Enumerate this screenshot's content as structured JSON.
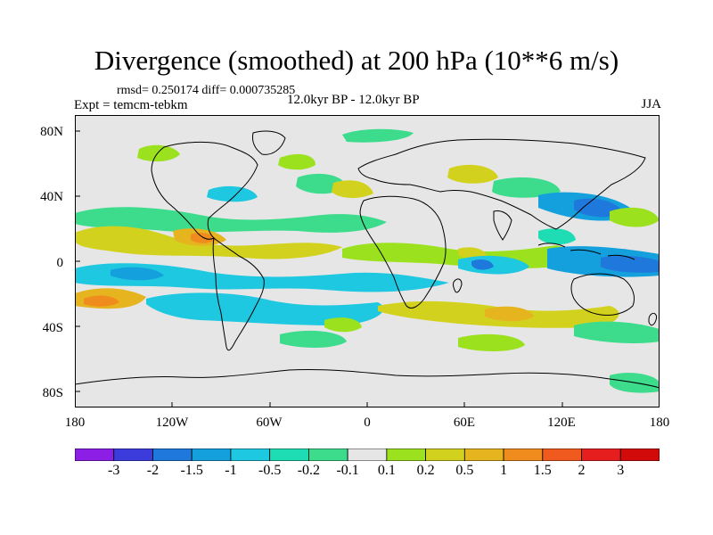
{
  "title": "Divergence (smoothed) at 200 hPa (10**6 m/s)",
  "stats": "rmsd= 0.250174 diff= 0.000735285",
  "expt": "Expt = temcm-tebkm",
  "period": "12.0kyr BP - 12.0kyr BP",
  "season": "JJA",
  "lat_labels": [
    "80N",
    "40N",
    "0",
    "40S",
    "80S"
  ],
  "lon_labels": [
    "180",
    "120W",
    "60W",
    "0",
    "60E",
    "120E",
    "180"
  ],
  "colorbar": {
    "labels": [
      "-3",
      "-2",
      "-1.5",
      "-1",
      "-0.5",
      "-0.2",
      "-0.1",
      "0.1",
      "0.2",
      "0.5",
      "1",
      "1.5",
      "2",
      "3"
    ],
    "colors": [
      "#8c1ee6",
      "#3c3cdc",
      "#1f78dc",
      "#14a0dc",
      "#1ec8e1",
      "#1edcb4",
      "#3cdc8c",
      "#e6e6e6",
      "#9be11e",
      "#d2d21e",
      "#e6b41e",
      "#f08c1e",
      "#f05a1e",
      "#e61e1e",
      "#d20a0a"
    ]
  },
  "colors": {
    "background": "#e6e6e6",
    "pos_weak": "#9be11e",
    "pos_mid": "#d2d21e",
    "pos_strong": "#e6b41e",
    "pos_stronger": "#f08c1e",
    "neg_weak": "#3cdc8c",
    "neg_mid": "#1ec8e1",
    "neg_strong": "#14a0dc",
    "neg_stronger": "#1f78dc"
  }
}
